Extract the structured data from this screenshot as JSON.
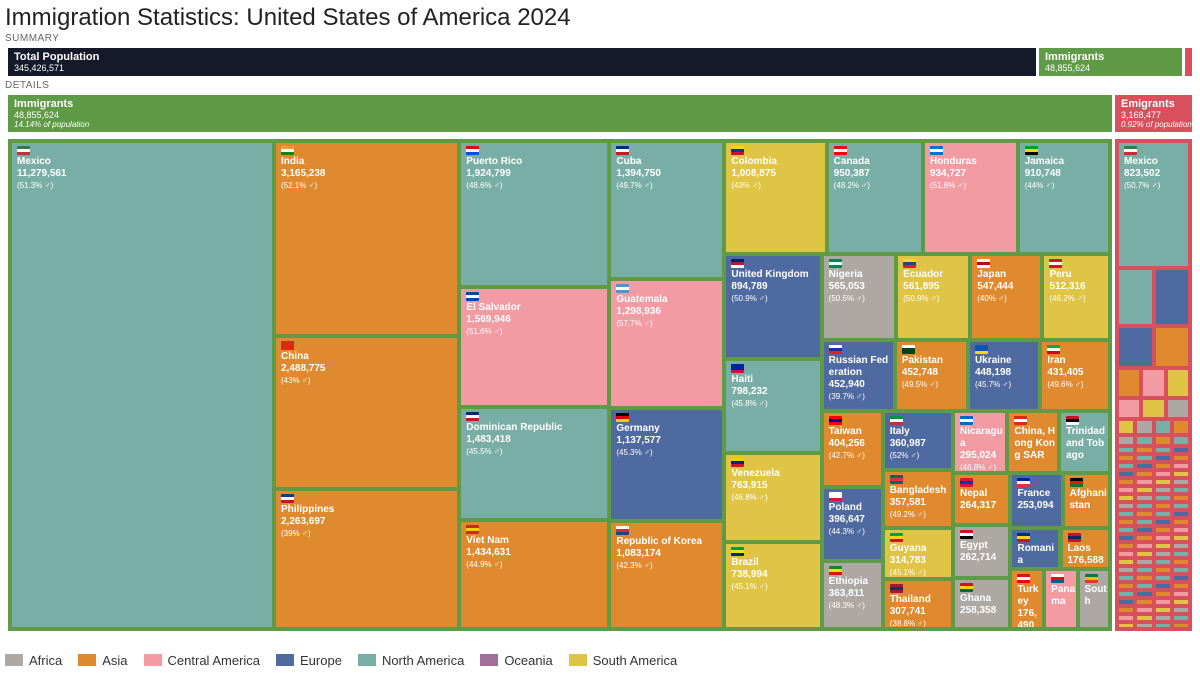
{
  "title": "Immigration Statistics: United States of America 2024",
  "summary_label": "SUMMARY",
  "details_label": "DETAILS",
  "summary": {
    "total": {
      "label": "Total Population",
      "value": "345,426,571"
    },
    "immigrants": {
      "label": "Immigrants",
      "value": "48,855,624"
    }
  },
  "details": {
    "immigrants": {
      "label": "Immigrants",
      "value": "48,855,624",
      "note": "14.14% of population"
    },
    "emigrants": {
      "label": "Emigrants",
      "value": "3,168,477",
      "note": "0.92% of population"
    }
  },
  "colors": {
    "Africa": "#ada8a4",
    "Asia": "#e08a30",
    "Central America": "#f29ba3",
    "Europe": "#4f6aa0",
    "North America": "#79aea6",
    "Oceania": "#a0709a",
    "South America": "#e0c445",
    "immigrants_green": "#5f9a47",
    "emigrants_red": "#d9505d",
    "total_dark": "#151929"
  },
  "legend": [
    "Africa",
    "Asia",
    "Central America",
    "Europe",
    "North America",
    "Oceania",
    "South America"
  ],
  "chart_data": {
    "type": "treemap",
    "title": "Immigration Statistics: United States of America 2024",
    "total_population": 345426571,
    "immigrants_total": 48855624,
    "emigrants_total": 3168477,
    "immigrants": [
      {
        "name": "Mexico",
        "region": "North America",
        "value": 11279561,
        "value_label": "11,279,561",
        "pct": "(51.3% ♂)",
        "flag": [
          "#2e7d46",
          "#ffffff",
          "#ce2b37"
        ]
      },
      {
        "name": "India",
        "region": "Asia",
        "value": 3165238,
        "value_label": "3,165,238",
        "pct": "(52.1% ♂)",
        "flag": [
          "#ff9933",
          "#ffffff",
          "#138808"
        ]
      },
      {
        "name": "China",
        "region": "Asia",
        "value": 2488775,
        "value_label": "2,488,775",
        "pct": "(43% ♂)",
        "flag": [
          "#de2910",
          "#de2910",
          "#de2910"
        ]
      },
      {
        "name": "Philippines",
        "region": "Asia",
        "value": 2263697,
        "value_label": "2,263,697",
        "pct": "(39% ♂)",
        "flag": [
          "#0038a8",
          "#ffffff",
          "#ce1126"
        ]
      },
      {
        "name": "Puerto Rico",
        "region": "North America",
        "value": 1924799,
        "value_label": "1,924,799",
        "pct": "(48.6% ♂)",
        "flag": [
          "#ed0000",
          "#ffffff",
          "#0050f0"
        ]
      },
      {
        "name": "El Salvador",
        "region": "Central America",
        "value": 1569946,
        "value_label": "1,569,946",
        "pct": "(51.6% ♂)",
        "flag": [
          "#0047ab",
          "#ffffff",
          "#0047ab"
        ]
      },
      {
        "name": "Dominican Republic",
        "region": "North America",
        "value": 1483418,
        "value_label": "1,483,418",
        "pct": "(45.5% ♂)",
        "flag": [
          "#002d62",
          "#ffffff",
          "#ce1126"
        ]
      },
      {
        "name": "Viet Nam",
        "region": "Asia",
        "value": 1434631,
        "value_label": "1,434,631",
        "pct": "(44.9% ♂)",
        "flag": [
          "#da251d",
          "#ffcd00",
          "#da251d"
        ]
      },
      {
        "name": "Cuba",
        "region": "North America",
        "value": 1394750,
        "value_label": "1,394,750",
        "pct": "(49.7% ♂)",
        "flag": [
          "#002a8f",
          "#ffffff",
          "#cf142b"
        ]
      },
      {
        "name": "Guatemala",
        "region": "Central America",
        "value": 1298936,
        "value_label": "1,298,936",
        "pct": "(57.7% ♂)",
        "flag": [
          "#4997d0",
          "#ffffff",
          "#4997d0"
        ]
      },
      {
        "name": "Germany",
        "region": "Europe",
        "value": 1137577,
        "value_label": "1,137,577",
        "pct": "(45.3% ♂)",
        "flag": [
          "#000000",
          "#dd0000",
          "#ffce00"
        ]
      },
      {
        "name": "Republic of Korea",
        "region": "Asia",
        "value": 1083174,
        "value_label": "1,083,174",
        "pct": "(42.3% ♂)",
        "flag": [
          "#ffffff",
          "#cd2e3a",
          "#0047a0"
        ]
      },
      {
        "name": "Colombia",
        "region": "South America",
        "value": 1008875,
        "value_label": "1,008,875",
        "pct": "(43% ♂)",
        "flag": [
          "#fcd116",
          "#003893",
          "#ce1126"
        ]
      },
      {
        "name": "Canada",
        "region": "North America",
        "value": 950387,
        "value_label": "950,387",
        "pct": "(48.2% ♂)",
        "flag": [
          "#ff0000",
          "#ffffff",
          "#ff0000"
        ]
      },
      {
        "name": "Honduras",
        "region": "Central America",
        "value": 934727,
        "value_label": "934,727",
        "pct": "(51.8% ♂)",
        "flag": [
          "#0073cf",
          "#ffffff",
          "#0073cf"
        ]
      },
      {
        "name": "Jamaica",
        "region": "North America",
        "value": 910748,
        "value_label": "910,748",
        "pct": "(44% ♂)",
        "flag": [
          "#009b3a",
          "#fed100",
          "#000000"
        ]
      },
      {
        "name": "United Kingdom",
        "region": "Europe",
        "value": 894789,
        "value_label": "894,789",
        "pct": "(50.9% ♂)",
        "flag": [
          "#012169",
          "#c8102e",
          "#ffffff"
        ]
      },
      {
        "name": "Haiti",
        "region": "North America",
        "value": 798232,
        "value_label": "798,232",
        "pct": "(45.8% ♂)",
        "flag": [
          "#00209f",
          "#00209f",
          "#d21034"
        ]
      },
      {
        "name": "Venezuela",
        "region": "South America",
        "value": 763915,
        "value_label": "763,915",
        "pct": "(46.8% ♂)",
        "flag": [
          "#ffcc00",
          "#00247d",
          "#cf142b"
        ]
      },
      {
        "name": "Brazil",
        "region": "South America",
        "value": 738994,
        "value_label": "738,994",
        "pct": "(45.1% ♂)",
        "flag": [
          "#009c3b",
          "#ffdf00",
          "#002776"
        ]
      },
      {
        "name": "Nigeria",
        "region": "Africa",
        "value": 565053,
        "value_label": "565,053",
        "pct": "(50.5% ♂)",
        "flag": [
          "#008751",
          "#ffffff",
          "#008751"
        ]
      },
      {
        "name": "Ecuador",
        "region": "South America",
        "value": 561895,
        "value_label": "561,895",
        "pct": "(50.9% ♂)",
        "flag": [
          "#ffdd00",
          "#034ea2",
          "#ed1c24"
        ]
      },
      {
        "name": "Japan",
        "region": "Asia",
        "value": 547444,
        "value_label": "547,444",
        "pct": "(40% ♂)",
        "flag": [
          "#ffffff",
          "#bc002d",
          "#ffffff"
        ]
      },
      {
        "name": "Peru",
        "region": "South America",
        "value": 512316,
        "value_label": "512,316",
        "pct": "(46.2% ♂)",
        "flag": [
          "#d91023",
          "#ffffff",
          "#d91023"
        ]
      },
      {
        "name": "Russian Federation",
        "region": "Europe",
        "value": 452940,
        "value_label": "452,940",
        "pct": "(39.7% ♂)",
        "flag": [
          "#ffffff",
          "#0039a6",
          "#d52b1e"
        ]
      },
      {
        "name": "Pakistan",
        "region": "Asia",
        "value": 452748,
        "value_label": "452,748",
        "pct": "(49.5% ♂)",
        "flag": [
          "#ffffff",
          "#01411c",
          "#01411c"
        ]
      },
      {
        "name": "Ukraine",
        "region": "Europe",
        "value": 448198,
        "value_label": "448,198",
        "pct": "(45.7% ♂)",
        "flag": [
          "#0057b7",
          "#0057b7",
          "#ffd700"
        ]
      },
      {
        "name": "Iran",
        "region": "Asia",
        "value": 431405,
        "value_label": "431,405",
        "pct": "(49.6% ♂)",
        "flag": [
          "#239f40",
          "#ffffff",
          "#da0000"
        ]
      },
      {
        "name": "Bangladesh",
        "region": "Asia",
        "value": 357581,
        "value_label": "357,581",
        "pct": "(49.2% ♂)",
        "flag": [
          "#006a4e",
          "#f42a41",
          "#006a4e"
        ]
      },
      {
        "name": "Guyana",
        "region": "South America",
        "value": 314783,
        "value_label": "314,783",
        "pct": "(45.1% ♂)",
        "flag": [
          "#009e49",
          "#fcd116",
          "#ce1126"
        ]
      },
      {
        "name": "Thailand",
        "region": "Asia",
        "value": 307741,
        "value_label": "307,741",
        "pct": "(38.8% ♂)",
        "flag": [
          "#a51931",
          "#2d2a4a",
          "#a51931"
        ]
      },
      {
        "name": "Nicaragua",
        "region": "Central America",
        "value": 295024,
        "value_label": "295,024",
        "pct": "(46.8% ♂)",
        "flag": [
          "#0067c6",
          "#ffffff",
          "#0067c6"
        ]
      },
      {
        "name": "Taiwan",
        "region": "Asia",
        "value": 404256,
        "value_label": "404,256",
        "pct": "(42.7% ♂)",
        "flag": [
          "#fe0000",
          "#000095",
          "#fe0000"
        ]
      },
      {
        "name": "Poland",
        "region": "Europe",
        "value": 396647,
        "value_label": "396,647",
        "pct": "(44.3% ♂)",
        "flag": [
          "#ffffff",
          "#ffffff",
          "#dc143c"
        ]
      },
      {
        "name": "Ethiopia",
        "region": "Africa",
        "value": 363811,
        "value_label": "363,811",
        "pct": "(48.3% ♂)",
        "flag": [
          "#078930",
          "#fcdd09",
          "#da121a"
        ]
      },
      {
        "name": "Italy",
        "region": "Europe",
        "value": 360987,
        "value_label": "360,987",
        "pct": "(52% ♂)",
        "flag": [
          "#009246",
          "#ffffff",
          "#ce2b37"
        ]
      },
      {
        "name": "China, Hong Kong SAR",
        "region": "Asia",
        "value": 280000,
        "value_label": "",
        "pct": "",
        "flag": [
          "#de2910",
          "#ffffff",
          "#de2910"
        ]
      },
      {
        "name": "Trinidad and Tobago",
        "region": "North America",
        "value": 276000,
        "value_label": "",
        "pct": "",
        "flag": [
          "#ce1126",
          "#000000",
          "#ffffff"
        ]
      },
      {
        "name": "Nepal",
        "region": "Asia",
        "value": 264317,
        "value_label": "264,317",
        "pct": "",
        "flag": [
          "#dc143c",
          "#003893",
          "#dc143c"
        ]
      },
      {
        "name": "Egypt",
        "region": "Africa",
        "value": 262714,
        "value_label": "262,714",
        "pct": "",
        "flag": [
          "#ce1126",
          "#ffffff",
          "#000000"
        ]
      },
      {
        "name": "Ghana",
        "region": "Africa",
        "value": 258358,
        "value_label": "258,358",
        "pct": "",
        "flag": [
          "#ce1126",
          "#fcd116",
          "#006b3f"
        ]
      },
      {
        "name": "France",
        "region": "Europe",
        "value": 253094,
        "value_label": "253,094",
        "pct": "",
        "flag": [
          "#002395",
          "#ffffff",
          "#ed2939"
        ]
      },
      {
        "name": "Afghanistan",
        "region": "Asia",
        "value": 230000,
        "value_label": "",
        "pct": "",
        "flag": [
          "#000000",
          "#d32011",
          "#007a36"
        ]
      },
      {
        "name": "Romania",
        "region": "Europe",
        "value": 178498,
        "value_label": "178,498",
        "pct": "",
        "flag": [
          "#002b7f",
          "#fcd116",
          "#ce1126"
        ]
      },
      {
        "name": "Laos",
        "region": "Asia",
        "value": 176588,
        "value_label": "176,588",
        "pct": "",
        "flag": [
          "#ce1126",
          "#002868",
          "#ce1126"
        ]
      },
      {
        "name": "Turkey",
        "region": "Asia",
        "value": 176490,
        "value_label": "176,490",
        "pct": "",
        "flag": [
          "#e30a17",
          "#ffffff",
          "#e30a17"
        ]
      },
      {
        "name": "Panama",
        "region": "Central America",
        "value": 175000,
        "value_label": "",
        "pct": "",
        "flag": [
          "#ffffff",
          "#da121a",
          "#005aa7"
        ]
      },
      {
        "name": "South",
        "region": "Africa",
        "value": 170000,
        "value_label": "",
        "pct": "",
        "flag": [
          "#007a4d",
          "#ffb612",
          "#de3831"
        ]
      }
    ],
    "emigrants": [
      {
        "name": "Mexico",
        "region": "North America",
        "value": 823502,
        "value_label": "823,502",
        "pct": "(50.7% ♂)",
        "flag": [
          "#2e7d46",
          "#ffffff",
          "#ce2b37"
        ]
      }
    ],
    "legend": [
      "Africa",
      "Asia",
      "Central America",
      "Europe",
      "North America",
      "Oceania",
      "South America"
    ]
  }
}
